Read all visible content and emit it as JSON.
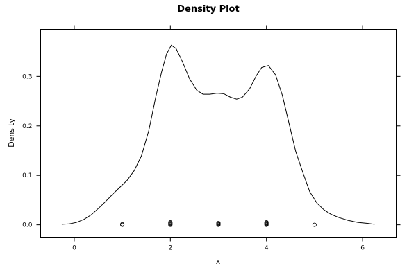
{
  "chart_data": {
    "type": "line",
    "title": "Density Plot",
    "xlabel": "x",
    "ylabel": "Density",
    "xlim": [
      -0.7,
      6.7
    ],
    "ylim": [
      -0.025,
      0.395
    ],
    "x_ticks": [
      0,
      2,
      4,
      6
    ],
    "y_ticks": [
      0.0,
      0.1,
      0.2,
      0.3
    ],
    "x_tick_labels": [
      "0",
      "2",
      "4",
      "6"
    ],
    "y_tick_labels": [
      "0.0",
      "0.1",
      "0.2",
      "0.3"
    ],
    "grid": false,
    "legend": "none",
    "series": [
      {
        "x": [
          -0.26,
          -0.1,
          0.05,
          0.2,
          0.35,
          0.5,
          0.65,
          0.8,
          0.95,
          1.1,
          1.25,
          1.4,
          1.55,
          1.7,
          1.82,
          1.92,
          2.02,
          2.12,
          2.25,
          2.4,
          2.55,
          2.68,
          2.82,
          2.97,
          3.11,
          3.25,
          3.38,
          3.5,
          3.65,
          3.78,
          3.9,
          4.04,
          4.19,
          4.33,
          4.47,
          4.61,
          4.76,
          4.9,
          5.05,
          5.2,
          5.35,
          5.5,
          5.7,
          5.9,
          6.1,
          6.25
        ],
        "y": [
          0.001,
          0.002,
          0.005,
          0.011,
          0.02,
          0.033,
          0.047,
          0.062,
          0.076,
          0.09,
          0.11,
          0.14,
          0.19,
          0.26,
          0.31,
          0.345,
          0.363,
          0.356,
          0.33,
          0.295,
          0.272,
          0.264,
          0.264,
          0.266,
          0.265,
          0.258,
          0.254,
          0.258,
          0.275,
          0.3,
          0.318,
          0.322,
          0.303,
          0.262,
          0.205,
          0.148,
          0.105,
          0.067,
          0.044,
          0.03,
          0.021,
          0.015,
          0.009,
          0.005,
          0.003,
          0.001
        ]
      }
    ],
    "rug_points": [
      {
        "x": 1,
        "count": 2
      },
      {
        "x": 2,
        "count": 5
      },
      {
        "x": 3,
        "count": 4
      },
      {
        "x": 4,
        "count": 5
      },
      {
        "x": 5,
        "count": 1
      }
    ]
  }
}
